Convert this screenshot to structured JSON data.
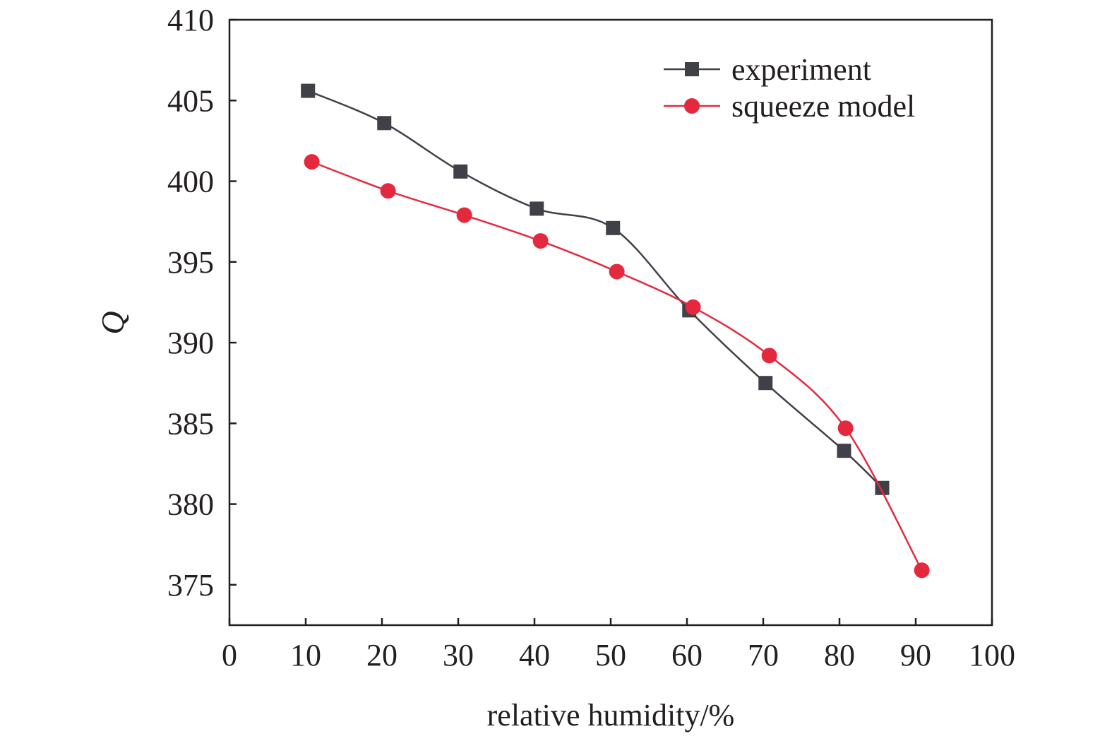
{
  "chart_data": {
    "type": "line",
    "title": "",
    "xlabel": "relative humidity/%",
    "ylabel": "Q",
    "xlim": [
      0,
      100
    ],
    "ylim": [
      372.5,
      410
    ],
    "xticks": [
      0,
      10,
      20,
      30,
      40,
      50,
      60,
      70,
      80,
      90,
      100
    ],
    "yticks": [
      375,
      380,
      385,
      390,
      395,
      400,
      405,
      410
    ],
    "grid": false,
    "legend_position": "top-right",
    "series": [
      {
        "name": "experiment",
        "color": "#404049",
        "marker": "square",
        "x": [
          10.3,
          20.3,
          30.3,
          40.3,
          50.3,
          60.3,
          70.3,
          80.6,
          85.6
        ],
        "y": [
          405.6,
          403.6,
          400.6,
          398.3,
          397.1,
          392.0,
          387.5,
          383.3,
          381.0
        ]
      },
      {
        "name": "squeeze model",
        "color": "#e4293f",
        "marker": "circle",
        "x": [
          10.8,
          20.8,
          30.8,
          40.8,
          50.8,
          60.8,
          70.8,
          80.8,
          90.8
        ],
        "y": [
          401.2,
          399.4,
          397.9,
          396.3,
          394.4,
          392.2,
          389.2,
          384.7,
          375.9
        ]
      }
    ]
  }
}
